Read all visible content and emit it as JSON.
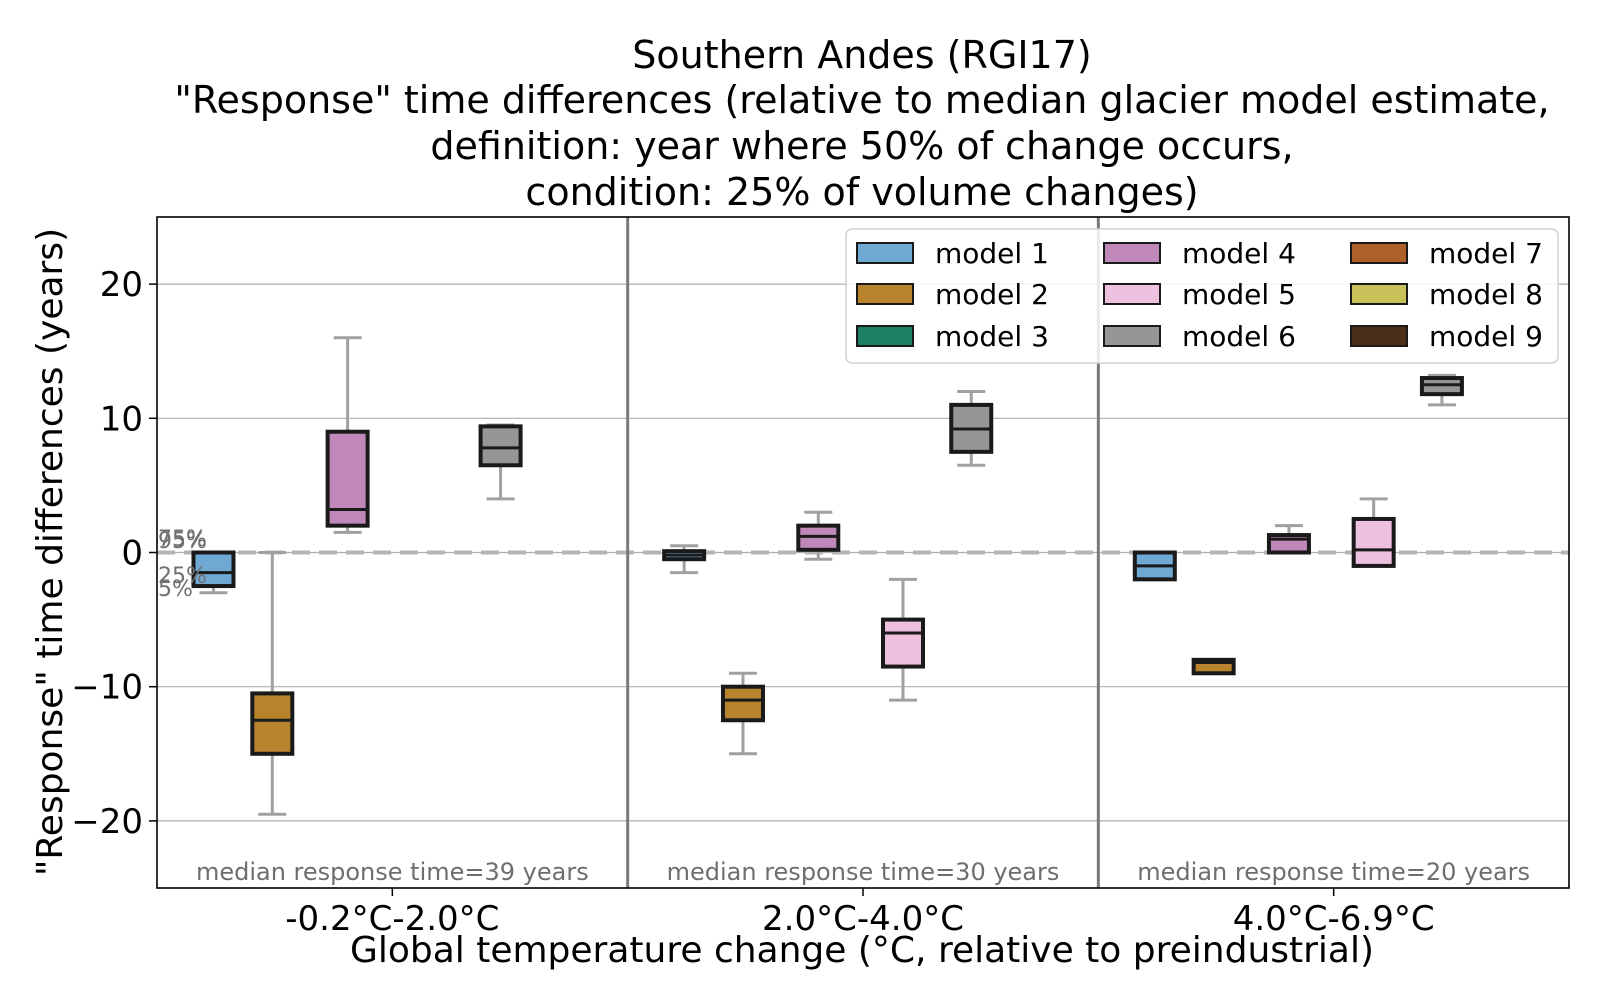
{
  "chart_data": {
    "type": "box",
    "title": [
      "Southern Andes (RGI17)",
      "\"Response\" time differences (relative to median glacier model estimate,",
      "definition: year where 50% of change occurs,",
      "condition: 25% of volume changes)"
    ],
    "xlabel": "Global temperature change (°C, relative to preindustrial)",
    "ylabel": "\"Response\" time differences (years)",
    "ylim": [
      -25,
      25
    ],
    "yticks": [
      -20,
      -10,
      0,
      10,
      20
    ],
    "ytick_labels": [
      "−20",
      "−10",
      "0",
      "10",
      "20"
    ],
    "grid": "horizontal",
    "reference_line": 0,
    "percentile_labels": [
      "95%",
      "75%",
      "25%",
      "5%"
    ],
    "categories": [
      {
        "label": "-0.2°C-2.0°C",
        "note": "median response time=39 years"
      },
      {
        "label": "2.0°C-4.0°C",
        "note": "median response time=30 years"
      },
      {
        "label": "4.0°C-6.9°C",
        "note": "median response time=20 years"
      }
    ],
    "legend_position": "top-right",
    "series": [
      {
        "name": "model 1",
        "color": "#6fa8d3"
      },
      {
        "name": "model 2",
        "color": "#b8832d"
      },
      {
        "name": "model 3",
        "color": "#1e8064"
      },
      {
        "name": "model 4",
        "color": "#bf88b8"
      },
      {
        "name": "model 5",
        "color": "#ecc0de"
      },
      {
        "name": "model 6",
        "color": "#969696"
      },
      {
        "name": "model 7",
        "color": "#ad6029"
      },
      {
        "name": "model 8",
        "color": "#c8c058"
      },
      {
        "name": "model 9",
        "color": "#4a3018"
      }
    ],
    "boxes": [
      {
        "category": 0,
        "model": 1,
        "whislo": -3.0,
        "q1": -2.5,
        "med": -1.5,
        "q3": 0.0,
        "whishi": 0.0
      },
      {
        "category": 0,
        "model": 2,
        "whislo": -19.5,
        "q1": -15.0,
        "med": -12.5,
        "q3": -10.5,
        "whishi": 0.0
      },
      {
        "category": 0,
        "model": 4,
        "whislo": 1.5,
        "q1": 2.0,
        "med": 3.2,
        "q3": 9.0,
        "whishi": 16.0
      },
      {
        "category": 0,
        "model": 6,
        "whislo": 4.0,
        "q1": 6.5,
        "med": 7.8,
        "q3": 9.4,
        "whishi": 9.5
      },
      {
        "category": 1,
        "model": 1,
        "whislo": -1.5,
        "q1": -0.5,
        "med": -0.2,
        "q3": 0.1,
        "whishi": 0.5
      },
      {
        "category": 1,
        "model": 2,
        "whislo": -15.0,
        "q1": -12.5,
        "med": -11.0,
        "q3": -10.0,
        "whishi": -9.0
      },
      {
        "category": 1,
        "model": 4,
        "whislo": -0.5,
        "q1": 0.2,
        "med": 1.2,
        "q3": 2.0,
        "whishi": 3.0
      },
      {
        "category": 1,
        "model": 5,
        "whislo": -11.0,
        "q1": -8.5,
        "med": -6.0,
        "q3": -5.0,
        "whishi": -2.0
      },
      {
        "category": 1,
        "model": 6,
        "whislo": 6.5,
        "q1": 7.5,
        "med": 9.2,
        "q3": 11.0,
        "whishi": 12.0
      },
      {
        "category": 2,
        "model": 1,
        "whislo": -2.0,
        "q1": -2.0,
        "med": -1.0,
        "q3": 0.0,
        "whishi": 0.0
      },
      {
        "category": 2,
        "model": 2,
        "whislo": -9.0,
        "q1": -9.0,
        "med": -8.2,
        "q3": -8.0,
        "whishi": -8.0
      },
      {
        "category": 2,
        "model": 4,
        "whislo": 0.0,
        "q1": 0.0,
        "med": 1.0,
        "q3": 1.3,
        "whishi": 2.0
      },
      {
        "category": 2,
        "model": 5,
        "whislo": -1.0,
        "q1": -1.0,
        "med": 0.2,
        "q3": 2.5,
        "whishi": 4.0
      },
      {
        "category": 2,
        "model": 6,
        "whislo": 11.0,
        "q1": 11.8,
        "med": 12.5,
        "q3": 13.0,
        "whishi": 13.2
      }
    ]
  }
}
